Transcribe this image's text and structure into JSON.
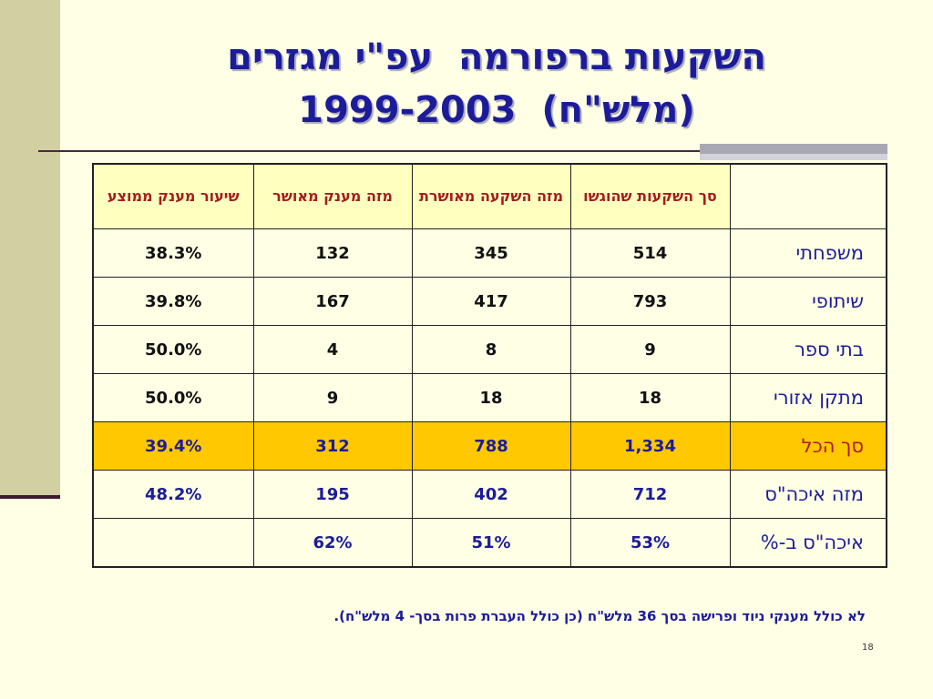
{
  "title": {
    "line1": "השקעות ברפורמה  עפ\"י מגזרים",
    "line2": "(מלש\"ח)  1999-2003"
  },
  "table": {
    "headers": [
      "",
      "סך השקעות שהוגשו",
      "מזה השקעה מאושרת",
      "מזה מענק מאושר",
      "שיעור מענק ממוצע"
    ],
    "rows": [
      {
        "label": "משפחתי",
        "cells": [
          "514",
          "345",
          "132",
          "38.3%"
        ]
      },
      {
        "label": "שיתופי",
        "cells": [
          "793",
          "417",
          "167",
          "39.8%"
        ]
      },
      {
        "label": "בתי ספר",
        "cells": [
          "9",
          "8",
          "4",
          "50.0%"
        ]
      },
      {
        "label": "מתקן אזורי",
        "cells": [
          "18",
          "18",
          "9",
          "50.0%"
        ]
      },
      {
        "label": "סך הכל",
        "cells": [
          "1,334",
          "788",
          "312",
          "39.4%"
        ]
      },
      {
        "label": "מזה איכה\"ס",
        "cells": [
          "712",
          "402",
          "195",
          "48.2%"
        ]
      },
      {
        "label": "איכה\"ס ב-%",
        "cells": [
          "53%",
          "51%",
          "62%",
          ""
        ]
      }
    ]
  },
  "note": "לא כולל מענקי ניוד ופרישה בסך 36 מלש\"ח (כן כולל העברת פרות  בסך- 4 מלש\"ח).",
  "page_number": "18",
  "colors": {
    "background": "#ffffe6",
    "title": "#1c1c9a",
    "header_text": "#a51c1c",
    "header_bg": "#ffffc0",
    "total_row_bg": "#ffc800"
  }
}
